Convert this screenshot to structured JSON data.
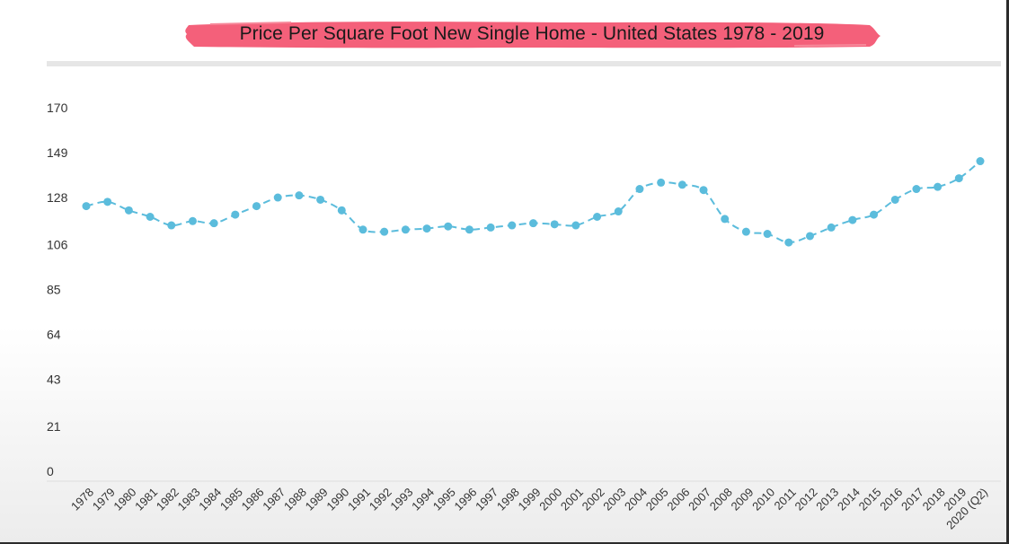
{
  "chart_data": {
    "type": "line",
    "title": "Price Per Square Foot New Single Home - United States 1978 - 2019",
    "xlabel": "",
    "ylabel": "",
    "y_ticks": [
      "0",
      "21",
      "43",
      "64",
      "85",
      "106",
      "128",
      "149",
      "170"
    ],
    "ylim": [
      0,
      170
    ],
    "grid": false,
    "line_style": "dashed",
    "colors": {
      "line": "#5bbcdc",
      "title_highlight": "#f4607a"
    },
    "categories": [
      "1978",
      "1979",
      "1980",
      "1981",
      "1982",
      "1983",
      "1984",
      "1985",
      "1986",
      "1987",
      "1988",
      "1989",
      "1990",
      "1991",
      "1992",
      "1993",
      "1994",
      "1995",
      "1996",
      "1997",
      "1998",
      "1999",
      "2000",
      "2001",
      "2002",
      "2003",
      "2004",
      "2005",
      "2006",
      "2007",
      "2008",
      "2009",
      "2010",
      "2011",
      "2012",
      "2013",
      "2014",
      "2015",
      "2016",
      "2017",
      "2018",
      "2019",
      "2020 (Q2)"
    ],
    "series": [
      {
        "values": [
          124,
          126,
          122,
          119,
          115,
          117,
          116,
          120,
          124,
          128,
          129,
          127,
          122,
          113,
          112,
          113,
          113.5,
          114.5,
          113,
          114,
          115,
          116,
          115.5,
          115,
          119,
          121.5,
          132,
          135,
          134,
          131.5,
          118,
          112,
          111,
          107,
          110,
          114,
          117.5,
          120,
          127,
          132,
          133,
          137,
          145
        ]
      }
    ]
  }
}
